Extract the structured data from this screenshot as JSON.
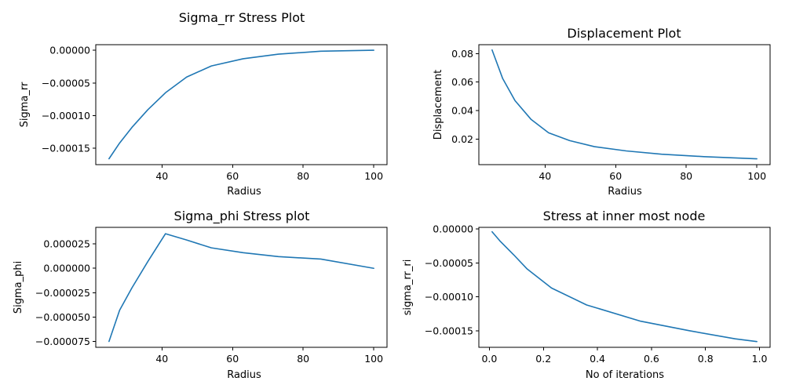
{
  "figure": {
    "background": "#ffffff",
    "line_color": "#1f77b4"
  },
  "chart_data": [
    {
      "type": "line",
      "title": "Sigma_rr Stress Plot",
      "xlabel": "Radius",
      "ylabel": "Sigma_rr",
      "xlim": [
        21.25,
        103.75
      ],
      "ylim": [
        -0.000175,
        8.5e-06
      ],
      "xticks": [
        40,
        60,
        80,
        100
      ],
      "xtick_labels": [
        "40",
        "60",
        "80",
        "100"
      ],
      "yticks": [
        -0.00015,
        -0.0001,
        -5e-05,
        0
      ],
      "ytick_labels": [
        "−0.00015",
        "−0.00010",
        "−0.00005",
        "0.00000"
      ],
      "series": [
        {
          "x": [
            25,
            28,
            31.5,
            36,
            41,
            47,
            54,
            63,
            73,
            85,
            100
          ],
          "y": [
            -0.000166,
            -0.000142,
            -0.000118,
            -9.1e-05,
            -6.5e-05,
            -4.1e-05,
            -2.4e-05,
            -1.3e-05,
            -6e-06,
            -1.5e-06,
            0
          ]
        }
      ]
    },
    {
      "type": "line",
      "title": "Displacement Plot",
      "xlabel": "Radius",
      "ylabel": "Displacement",
      "xlim": [
        21.25,
        103.75
      ],
      "ylim": [
        0.0022,
        0.0862
      ],
      "xticks": [
        40,
        60,
        80,
        100
      ],
      "xtick_labels": [
        "40",
        "60",
        "80",
        "100"
      ],
      "yticks": [
        0.02,
        0.04,
        0.06,
        0.08
      ],
      "ytick_labels": [
        "0.02",
        "0.04",
        "0.06",
        "0.08"
      ],
      "series": [
        {
          "x": [
            25,
            28,
            31.5,
            36,
            41,
            47,
            54,
            63,
            73,
            85,
            100
          ],
          "y": [
            0.0825,
            0.0625,
            0.047,
            0.034,
            0.0245,
            0.019,
            0.0148,
            0.0118,
            0.0095,
            0.0078,
            0.0063
          ]
        }
      ]
    },
    {
      "type": "line",
      "title": "Sigma_phi Stress plot",
      "xlabel": "Radius",
      "ylabel": "Sigma_phi",
      "xlim": [
        21.25,
        103.75
      ],
      "ylim": [
        -8.1e-05,
        4.2e-05
      ],
      "xticks": [
        40,
        60,
        80,
        100
      ],
      "xtick_labels": [
        "40",
        "60",
        "80",
        "100"
      ],
      "yticks": [
        -7.5e-05,
        -5e-05,
        -2.5e-05,
        0,
        2.5e-05
      ],
      "ytick_labels": [
        "−0.000075",
        "−0.000050",
        "−0.000025",
        "0.000000",
        "0.000025"
      ],
      "series": [
        {
          "x": [
            25,
            28,
            31.5,
            36,
            41,
            47,
            54,
            63,
            73,
            85,
            100
          ],
          "y": [
            -7.5e-05,
            -4.3e-05,
            -2e-05,
            7e-06,
            3.55e-05,
            2.9e-05,
            2.1e-05,
            1.6e-05,
            1.2e-05,
            9.5e-06,
            0
          ]
        }
      ]
    },
    {
      "type": "line",
      "title": "Stress at inner most node",
      "xlabel": "No of iterations",
      "ylabel": "sigma_rr_ri",
      "xlim": [
        -0.039,
        1.039
      ],
      "ylim": [
        -0.0001745,
        2.5e-06
      ],
      "xticks": [
        0,
        0.2,
        0.4,
        0.6,
        0.8,
        1
      ],
      "xtick_labels": [
        "0.0",
        "0.2",
        "0.4",
        "0.6",
        "0.8",
        "1.0"
      ],
      "yticks": [
        -0.00015,
        -0.0001,
        -5e-05,
        0
      ],
      "ytick_labels": [
        "−0.00015",
        "−0.00010",
        "−0.00005",
        "0.00000"
      ],
      "series": [
        {
          "x": [
            0.01,
            0.04,
            0.09,
            0.14,
            0.23,
            0.36,
            0.56,
            0.74,
            0.91,
            0.99
          ],
          "y": [
            -4e-06,
            -1.8e-05,
            -3.8e-05,
            -5.9e-05,
            -8.7e-05,
            -0.000112,
            -0.000136,
            -0.00015,
            -0.000162,
            -0.000166
          ]
        }
      ]
    }
  ]
}
